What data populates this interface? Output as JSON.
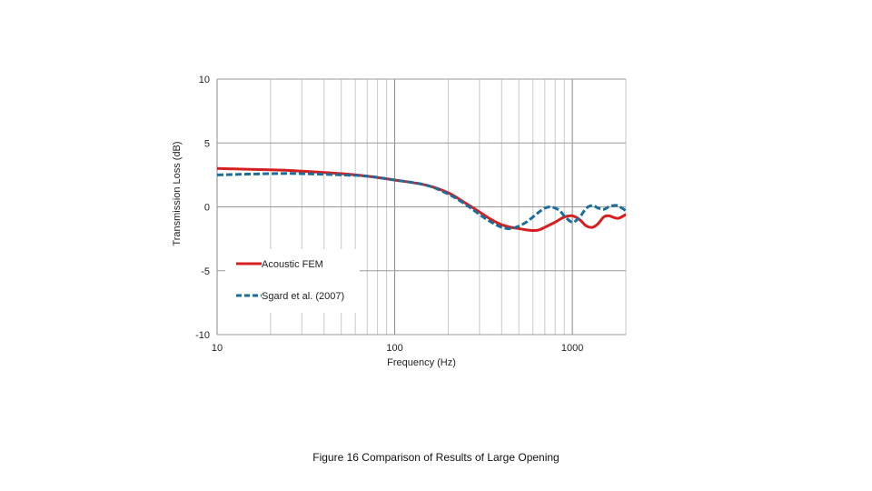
{
  "chart_data": {
    "type": "line",
    "caption": "Figure 16 Comparison of Results of Large Opening",
    "xlabel": "Frequency (Hz)",
    "ylabel": "Transmission Loss (dB)",
    "xscale": "log",
    "xlim": [
      10,
      2000
    ],
    "ylim": [
      -10,
      10
    ],
    "xticks": [
      10,
      100,
      1000
    ],
    "xtick_labels": [
      "10",
      "100",
      "1000"
    ],
    "yticks": [
      10,
      5,
      0,
      -5,
      -10
    ],
    "ytick_labels": [
      "10",
      "5",
      "0",
      "-5",
      "-10"
    ],
    "grid": true,
    "legend_position": "lower-left",
    "series": [
      {
        "name": "Acoustic FEM",
        "color": "#d42020",
        "style": "solid",
        "x": [
          10,
          20,
          30,
          50,
          70,
          100,
          150,
          200,
          250,
          300,
          350,
          400,
          450,
          500,
          550,
          600,
          650,
          700,
          800,
          900,
          1000,
          1100,
          1200,
          1300,
          1400,
          1500,
          1600,
          1800,
          2000
        ],
        "y": [
          3.0,
          2.9,
          2.8,
          2.6,
          2.4,
          2.1,
          1.7,
          1.1,
          0.3,
          -0.4,
          -1.0,
          -1.4,
          -1.6,
          -1.7,
          -1.8,
          -1.85,
          -1.8,
          -1.6,
          -1.2,
          -0.8,
          -0.7,
          -1.0,
          -1.5,
          -1.6,
          -1.3,
          -0.8,
          -0.7,
          -0.9,
          -0.6
        ]
      },
      {
        "name": "Sgard et al. (2007)",
        "color": "#1a6e9e",
        "style": "dashed",
        "x": [
          10,
          20,
          30,
          50,
          70,
          100,
          150,
          200,
          250,
          300,
          350,
          400,
          450,
          500,
          550,
          600,
          650,
          700,
          750,
          800,
          850,
          900,
          1000,
          1100,
          1200,
          1300,
          1400,
          1500,
          1600,
          1700,
          1800,
          1900,
          2000
        ],
        "y": [
          2.5,
          2.6,
          2.6,
          2.5,
          2.4,
          2.1,
          1.7,
          1.0,
          0.2,
          -0.6,
          -1.2,
          -1.6,
          -1.7,
          -1.5,
          -1.2,
          -0.8,
          -0.4,
          -0.1,
          0.0,
          -0.1,
          -0.3,
          -0.7,
          -1.2,
          -0.8,
          -0.1,
          0.1,
          -0.1,
          -0.2,
          0.0,
          0.1,
          0.1,
          -0.1,
          -0.3
        ]
      }
    ]
  }
}
